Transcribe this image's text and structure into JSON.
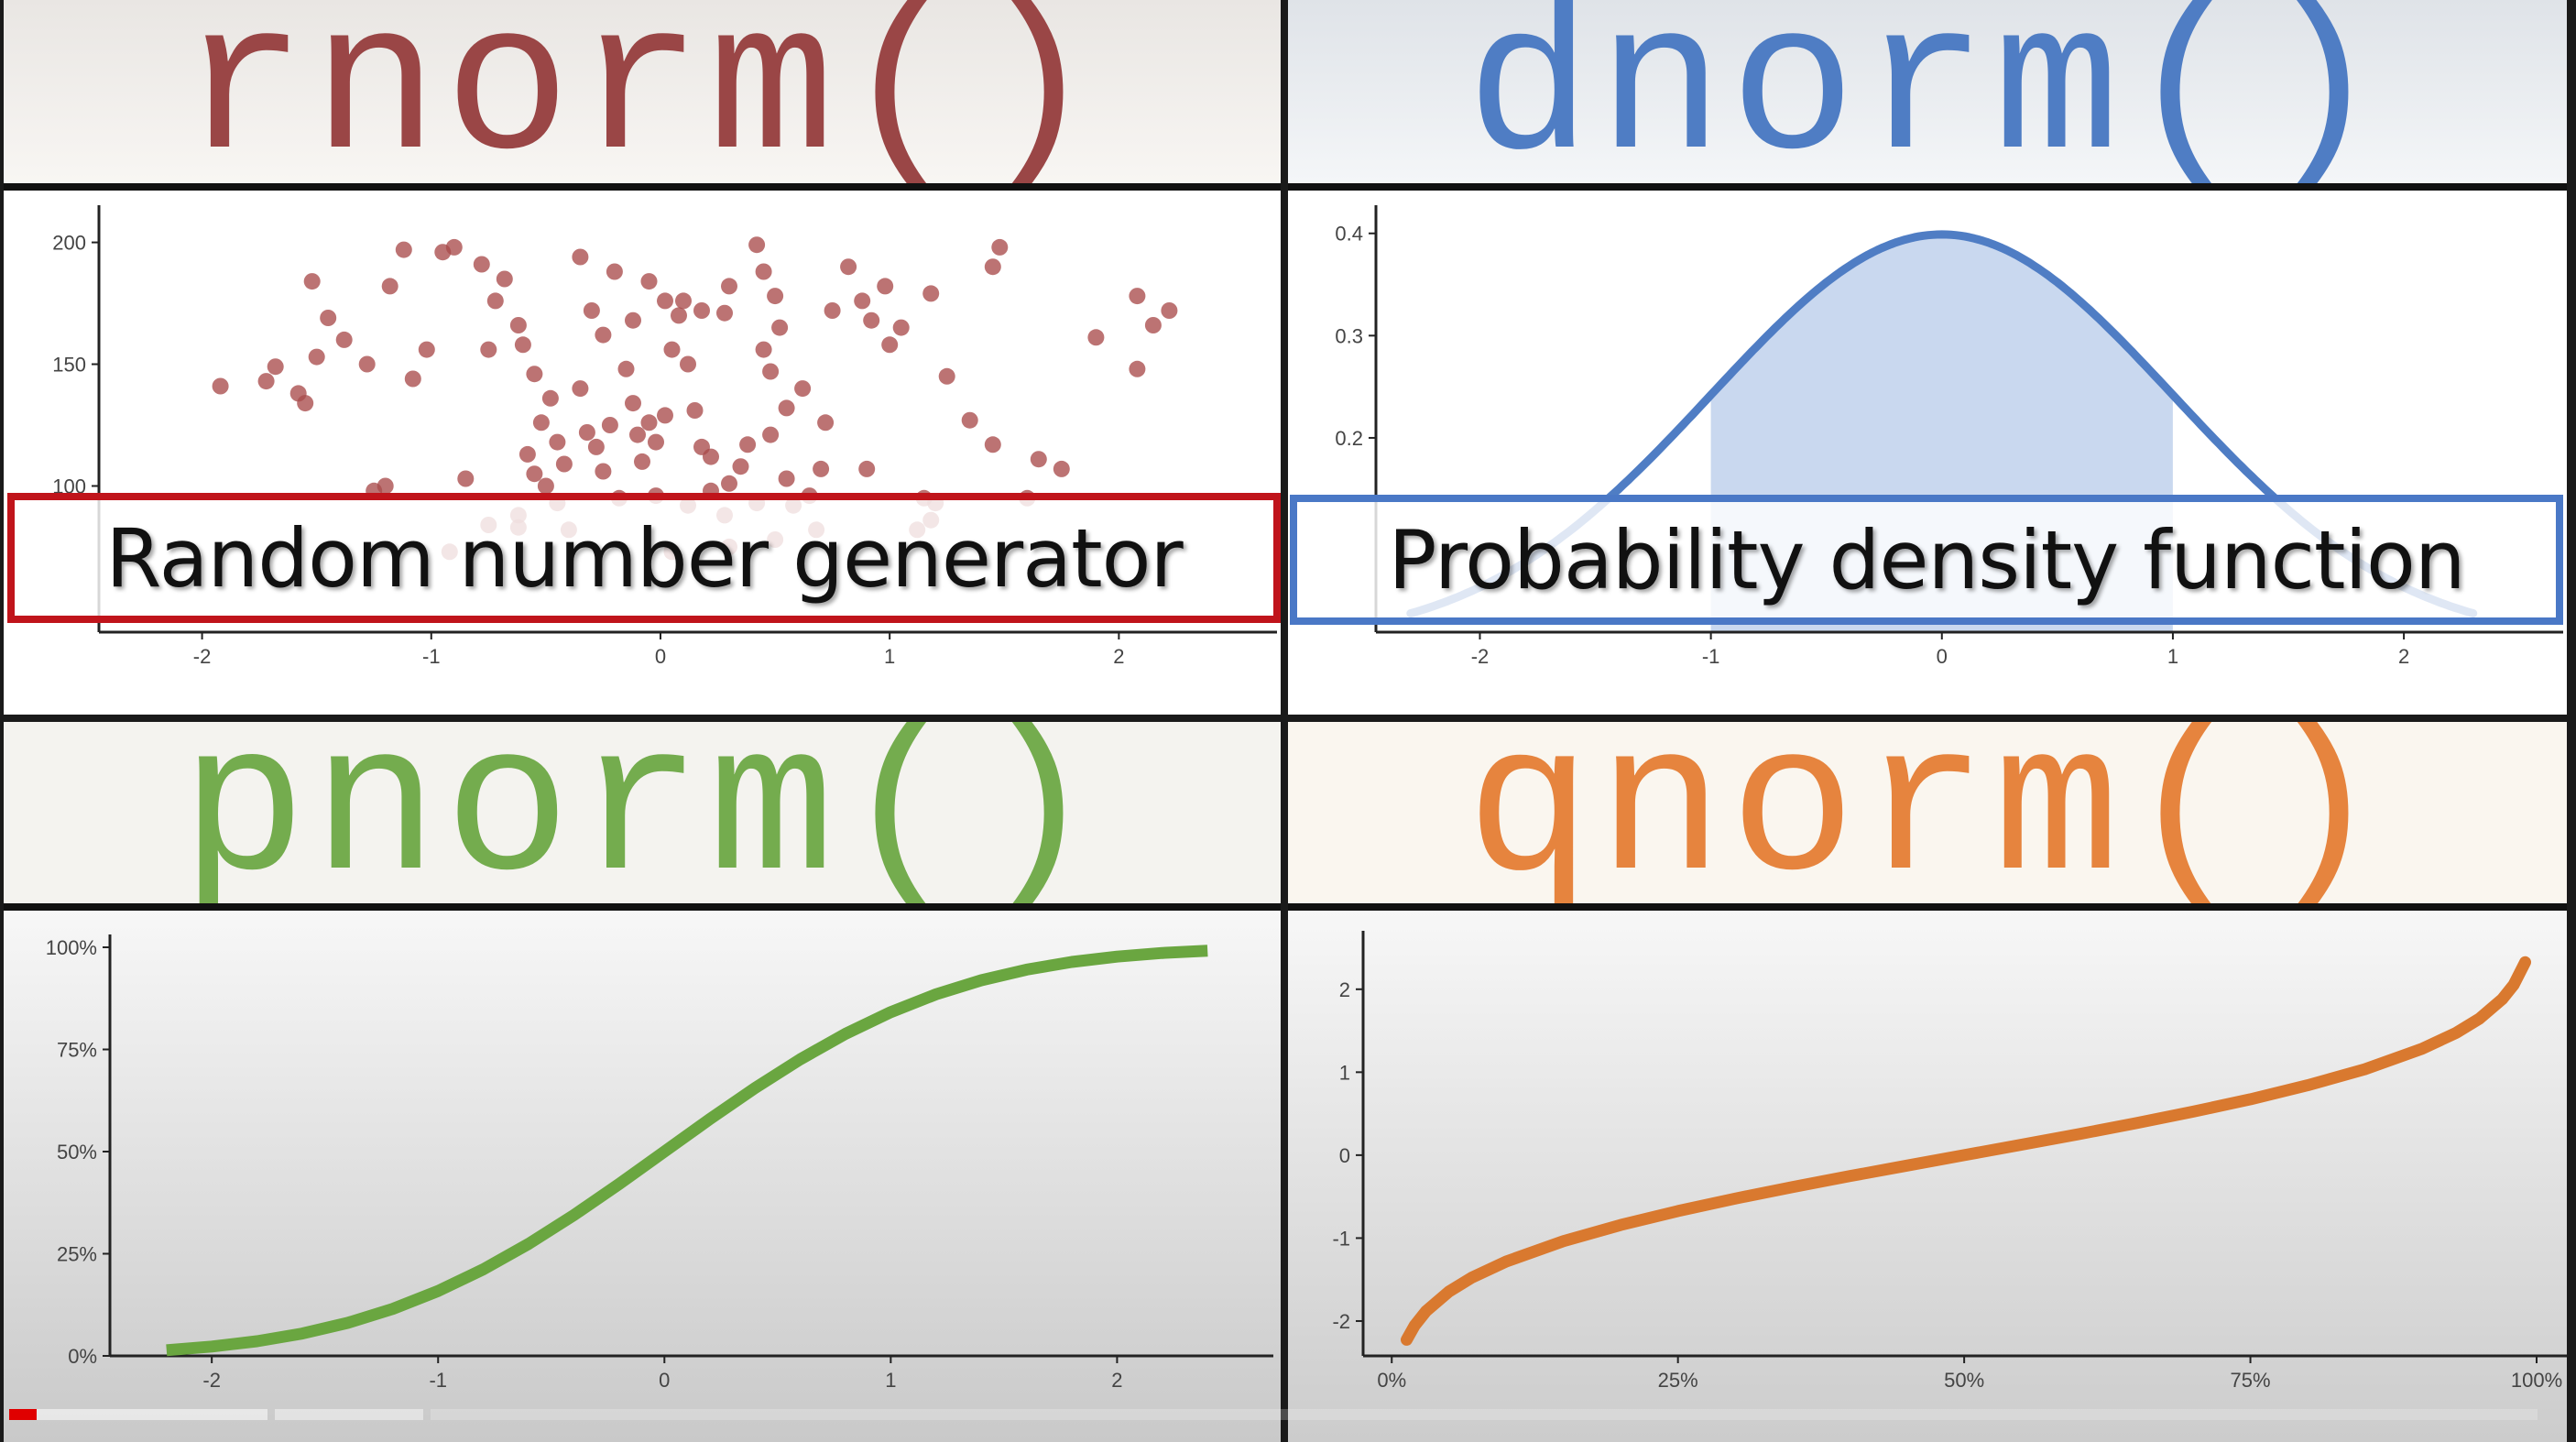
{
  "panels": {
    "rnorm": {
      "title": "rnorm()",
      "color": "#9a4646",
      "overlay": "Random number generator",
      "overlay_border": "#c0141b"
    },
    "dnorm": {
      "title": "dnorm()",
      "color": "#4f7dc4",
      "overlay": "Probability density function",
      "overlay_border": "#4a78c6"
    },
    "pnorm": {
      "title": "pnorm()",
      "color": "#74ac4e"
    },
    "qnorm": {
      "title": "qnorm()",
      "color": "#e6843e"
    }
  },
  "video_progress": {
    "played_fraction": 0.011,
    "color": "#e00000"
  },
  "chart_data": [
    {
      "type": "scatter",
      "id": "rnorm",
      "color": "#a94b4b",
      "xlim": [
        -2.45,
        2.65
      ],
      "ylim": [
        40,
        210
      ],
      "yticks": [
        100,
        150,
        200
      ],
      "ytick_labels": [
        "100",
        "150",
        "200"
      ],
      "xticks": [
        -2,
        -1,
        0,
        1,
        2
      ],
      "xtick_labels": [
        "-2",
        "-1",
        "0",
        "1",
        "2"
      ],
      "points": [
        [
          -1.92,
          141
        ],
        [
          -1.68,
          149
        ],
        [
          -1.72,
          143
        ],
        [
          -1.58,
          138
        ],
        [
          -1.55,
          134
        ],
        [
          -1.5,
          153
        ],
        [
          -1.45,
          169
        ],
        [
          -1.38,
          160
        ],
        [
          -1.52,
          184
        ],
        [
          -1.28,
          150
        ],
        [
          -1.25,
          98
        ],
        [
          -1.2,
          100
        ],
        [
          -1.12,
          197
        ],
        [
          -1.18,
          182
        ],
        [
          -1.08,
          144
        ],
        [
          -1.02,
          156
        ],
        [
          -0.95,
          196
        ],
        [
          -0.9,
          198
        ],
        [
          -0.78,
          191
        ],
        [
          -0.72,
          176
        ],
        [
          -0.75,
          156
        ],
        [
          -0.68,
          185
        ],
        [
          -0.62,
          166
        ],
        [
          -0.6,
          158
        ],
        [
          -0.55,
          146
        ],
        [
          -0.52,
          126
        ],
        [
          -0.48,
          136
        ],
        [
          -0.45,
          118
        ],
        [
          -0.42,
          109
        ],
        [
          -0.58,
          113
        ],
        [
          -0.55,
          105
        ],
        [
          -0.5,
          100
        ],
        [
          -0.45,
          93
        ],
        [
          -0.4,
          82
        ],
        [
          -0.62,
          83
        ],
        [
          -0.35,
          140
        ],
        [
          -0.32,
          122
        ],
        [
          -0.28,
          116
        ],
        [
          -0.25,
          106
        ],
        [
          -0.18,
          95
        ],
        [
          -0.22,
          125
        ],
        [
          -0.15,
          148
        ],
        [
          -0.12,
          134
        ],
        [
          -0.1,
          121
        ],
        [
          -0.08,
          110
        ],
        [
          -0.05,
          126
        ],
        [
          -0.02,
          118
        ],
        [
          0.02,
          129
        ],
        [
          0.05,
          156
        ],
        [
          0.08,
          170
        ],
        [
          0.12,
          150
        ],
        [
          0.15,
          131
        ],
        [
          0.18,
          116
        ],
        [
          0.22,
          112
        ],
        [
          -0.2,
          188
        ],
        [
          -0.05,
          184
        ],
        [
          -0.12,
          168
        ],
        [
          -0.25,
          162
        ],
        [
          -0.3,
          172
        ],
        [
          0.02,
          176
        ],
        [
          0.1,
          176
        ],
        [
          0.18,
          172
        ],
        [
          0.28,
          171
        ],
        [
          0.3,
          182
        ],
        [
          -0.35,
          194
        ],
        [
          0.42,
          199
        ],
        [
          0.45,
          188
        ],
        [
          0.5,
          178
        ],
        [
          0.52,
          165
        ],
        [
          0.45,
          156
        ],
        [
          0.48,
          147
        ],
        [
          0.55,
          132
        ],
        [
          0.48,
          121
        ],
        [
          0.38,
          117
        ],
        [
          0.3,
          101
        ],
        [
          0.22,
          98
        ],
        [
          0.35,
          108
        ],
        [
          0.42,
          93
        ],
        [
          0.55,
          103
        ],
        [
          0.58,
          92
        ],
        [
          0.65,
          96
        ],
        [
          0.7,
          107
        ],
        [
          0.72,
          126
        ],
        [
          0.62,
          140
        ],
        [
          0.75,
          172
        ],
        [
          0.82,
          190
        ],
        [
          0.88,
          176
        ],
        [
          0.92,
          168
        ],
        [
          0.98,
          182
        ],
        [
          1.0,
          158
        ],
        [
          1.05,
          165
        ],
        [
          1.18,
          179
        ],
        [
          0.9,
          107
        ],
        [
          1.12,
          82
        ],
        [
          1.15,
          95
        ],
        [
          1.2,
          93
        ],
        [
          1.18,
          86
        ],
        [
          1.25,
          145
        ],
        [
          1.35,
          127
        ],
        [
          1.45,
          117
        ],
        [
          1.45,
          190
        ],
        [
          1.48,
          198
        ],
        [
          1.6,
          95
        ],
        [
          1.65,
          111
        ],
        [
          1.75,
          107
        ],
        [
          1.9,
          161
        ],
        [
          2.08,
          178
        ],
        [
          2.15,
          166
        ],
        [
          2.22,
          172
        ],
        [
          2.08,
          148
        ],
        [
          -0.02,
          96
        ],
        [
          0.12,
          92
        ],
        [
          0.28,
          88
        ],
        [
          -0.85,
          103
        ],
        [
          -0.75,
          84
        ],
        [
          -0.92,
          73
        ],
        [
          -0.62,
          88
        ],
        [
          0.05,
          73
        ],
        [
          0.3,
          75
        ],
        [
          0.5,
          78
        ],
        [
          0.68,
          82
        ]
      ]
    },
    {
      "type": "area",
      "id": "dnorm",
      "color": "#4f7dc4",
      "fill": "#c9d8ef",
      "xlim": [
        -2.45,
        2.65
      ],
      "ylim": [
        0.01,
        0.415
      ],
      "shade_range": [
        -1,
        1
      ],
      "yticks": [
        0.2,
        0.3,
        0.4
      ],
      "ytick_labels": [
        "0.2",
        "0.3",
        "0.4"
      ],
      "xticks": [
        -2,
        -1,
        0,
        1,
        2
      ],
      "xtick_labels": [
        "-2",
        "-1",
        "0",
        "1",
        "2"
      ],
      "x": [
        -2.3,
        -2.2,
        -2.1,
        -2.0,
        -1.9,
        -1.8,
        -1.7,
        -1.6,
        -1.5,
        -1.4,
        -1.3,
        -1.2,
        -1.1,
        -1.0,
        -0.9,
        -0.8,
        -0.7,
        -0.6,
        -0.5,
        -0.4,
        -0.3,
        -0.2,
        -0.1,
        0.0,
        0.1,
        0.2,
        0.3,
        0.4,
        0.5,
        0.6,
        0.7,
        0.8,
        0.9,
        1.0,
        1.1,
        1.2,
        1.3,
        1.4,
        1.5,
        1.6,
        1.7,
        1.8,
        1.9,
        2.0,
        2.1,
        2.2,
        2.3
      ],
      "y": [
        0.0283,
        0.0355,
        0.044,
        0.054,
        0.0656,
        0.079,
        0.094,
        0.1109,
        0.1295,
        0.1497,
        0.1714,
        0.1942,
        0.2179,
        0.242,
        0.2661,
        0.2897,
        0.3123,
        0.3332,
        0.3521,
        0.3683,
        0.3814,
        0.391,
        0.397,
        0.3989,
        0.397,
        0.391,
        0.3814,
        0.3683,
        0.3521,
        0.3332,
        0.3123,
        0.2897,
        0.2661,
        0.242,
        0.2179,
        0.1942,
        0.1714,
        0.1497,
        0.1295,
        0.1109,
        0.094,
        0.079,
        0.0656,
        0.054,
        0.044,
        0.0355,
        0.0283
      ]
    },
    {
      "type": "line",
      "id": "pnorm",
      "color": "#6aa640",
      "xlim": [
        -2.45,
        2.65
      ],
      "ylim": [
        0,
        1.0
      ],
      "yticks": [
        0,
        0.25,
        0.5,
        0.75,
        1.0
      ],
      "ytick_labels": [
        "0%",
        "25%",
        "50%",
        "75%",
        "100%"
      ],
      "xticks": [
        -2,
        -1,
        0,
        1,
        2
      ],
      "xtick_labels": [
        "-2",
        "-1",
        "0",
        "1",
        "2"
      ],
      "x": [
        -2.2,
        -2.0,
        -1.8,
        -1.6,
        -1.4,
        -1.2,
        -1.0,
        -0.8,
        -0.6,
        -0.4,
        -0.2,
        0.0,
        0.2,
        0.4,
        0.6,
        0.8,
        1.0,
        1.2,
        1.4,
        1.6,
        1.8,
        2.0,
        2.2,
        2.4
      ],
      "y": [
        0.0139,
        0.0228,
        0.0359,
        0.0548,
        0.0808,
        0.1151,
        0.1587,
        0.2119,
        0.2743,
        0.3446,
        0.4207,
        0.5,
        0.5793,
        0.6554,
        0.7257,
        0.7881,
        0.8413,
        0.8849,
        0.9192,
        0.9452,
        0.9641,
        0.9772,
        0.9861,
        0.9918
      ]
    },
    {
      "type": "line",
      "id": "qnorm",
      "color": "#d9792f",
      "xlim": [
        -0.025,
        1.02
      ],
      "ylim": [
        -2.42,
        2.55
      ],
      "yticks": [
        -2,
        -1,
        0,
        1,
        2
      ],
      "ytick_labels": [
        "-2",
        "-1",
        "0",
        "1",
        "2"
      ],
      "xticks": [
        0,
        0.25,
        0.5,
        0.75,
        1.0
      ],
      "xtick_labels": [
        "0%",
        "25%",
        "50%",
        "75%",
        "100%"
      ],
      "x": [
        0.013,
        0.02,
        0.03,
        0.05,
        0.07,
        0.1,
        0.15,
        0.2,
        0.25,
        0.3,
        0.35,
        0.4,
        0.45,
        0.5,
        0.55,
        0.6,
        0.65,
        0.7,
        0.75,
        0.8,
        0.85,
        0.9,
        0.93,
        0.95,
        0.97,
        0.98,
        0.99
      ],
      "y": [
        -2.226,
        -2.054,
        -1.881,
        -1.645,
        -1.476,
        -1.282,
        -1.036,
        -0.842,
        -0.674,
        -0.524,
        -0.385,
        -0.253,
        -0.126,
        0.0,
        0.126,
        0.253,
        0.385,
        0.524,
        0.674,
        0.842,
        1.036,
        1.282,
        1.476,
        1.645,
        1.881,
        2.054,
        2.326
      ]
    }
  ]
}
